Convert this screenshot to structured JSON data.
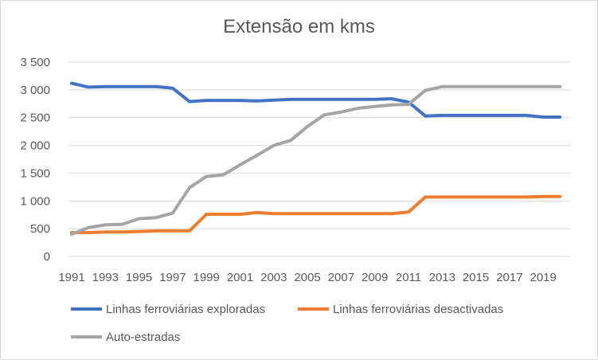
{
  "chart_data": {
    "type": "line",
    "title": "Extensão em kms",
    "xlabel": "",
    "ylabel": "",
    "ylim": [
      0,
      3500
    ],
    "y_ticks": [
      "3 500",
      "3 000",
      "2 500",
      "2 000",
      "1 500",
      "1 000",
      "500",
      "0"
    ],
    "y_tick_values": [
      3500,
      3000,
      2500,
      2000,
      1500,
      1000,
      500,
      0
    ],
    "x": [
      1991,
      1992,
      1993,
      1994,
      1995,
      1996,
      1997,
      1998,
      1999,
      2000,
      2001,
      2002,
      2003,
      2004,
      2005,
      2006,
      2007,
      2008,
      2009,
      2010,
      2011,
      2012,
      2013,
      2014,
      2015,
      2016,
      2017,
      2018,
      2019,
      2020
    ],
    "x_tick_labels": [
      "1991",
      "1993",
      "1995",
      "1997",
      "1999",
      "2001",
      "2003",
      "2005",
      "2007",
      "2009",
      "2011",
      "2013",
      "2015",
      "2017",
      "2019"
    ],
    "grid": "horizontal",
    "legend_position": "bottom",
    "series": [
      {
        "name": "Linhas ferroviárias exploradas",
        "color": "#4472c4",
        "values": [
          3120,
          3050,
          3060,
          3060,
          3060,
          3060,
          3030,
          2790,
          2810,
          2810,
          2810,
          2800,
          2815,
          2830,
          2830,
          2830,
          2830,
          2830,
          2830,
          2840,
          2780,
          2530,
          2540,
          2540,
          2540,
          2540,
          2540,
          2540,
          2510,
          2510
        ]
      },
      {
        "name": "Linhas ferroviárias desactivadas",
        "color": "#ed7d31",
        "values": [
          430,
          430,
          440,
          440,
          450,
          460,
          460,
          460,
          760,
          760,
          760,
          790,
          770,
          770,
          770,
          770,
          770,
          770,
          770,
          770,
          800,
          1070,
          1070,
          1070,
          1070,
          1070,
          1070,
          1070,
          1080,
          1080
        ]
      },
      {
        "name": "Auto-estradas",
        "color": "#a5a5a5",
        "values": [
          400,
          520,
          570,
          580,
          680,
          700,
          780,
          1240,
          1440,
          1470,
          1650,
          1820,
          2000,
          2090,
          2340,
          2550,
          2600,
          2670,
          2700,
          2730,
          2740,
          2990,
          3060,
          3060,
          3060,
          3060,
          3060,
          3060,
          3060,
          3060
        ]
      }
    ]
  }
}
